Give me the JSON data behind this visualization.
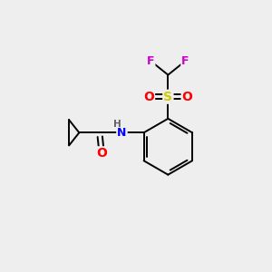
{
  "background_color": "#eeeeee",
  "bond_color": "#000000",
  "atom_colors": {
    "O": "#ff0000",
    "N": "#0000ff",
    "S": "#cccc00",
    "F": "#cc00cc",
    "H": "#606060",
    "C": "#000000"
  },
  "figsize": [
    3.0,
    3.0
  ],
  "dpi": 100,
  "lw": 1.4,
  "fontsize": 8.5
}
